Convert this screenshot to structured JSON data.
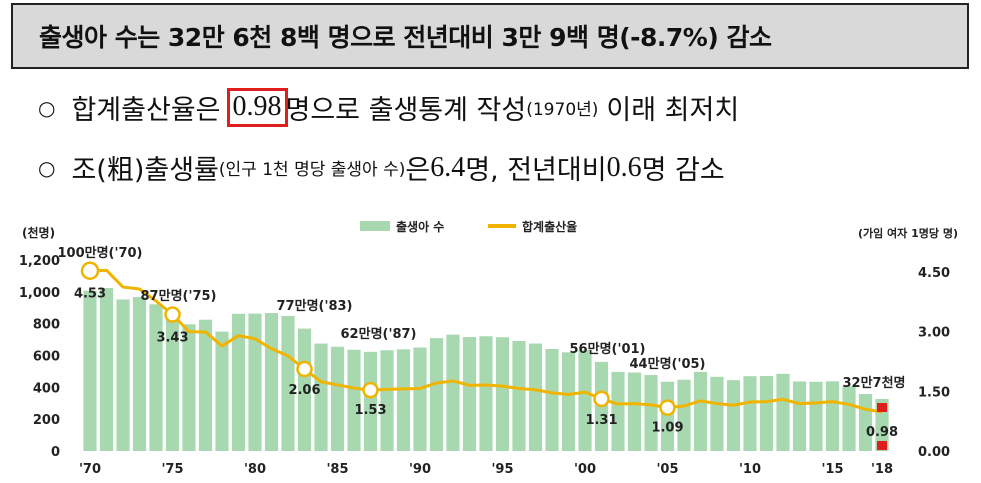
{
  "headline": "출생아 수는 32만 6천 8백 명으로 전년대비 3만 9백 명(-8.7%) 감소",
  "bullets": {
    "b1": {
      "bullet": "○",
      "before": "합계출산율은",
      "highlight": "0.98",
      "after": "명으로 출생통계 작성",
      "paren": "(1970년)",
      "tail": "이래 최저치"
    },
    "b2": {
      "bullet": "○",
      "before": "조(粗)출생률",
      "paren": "(인구 1천 명당 출생아 수)",
      "mid": "은 ",
      "num1": "6.4",
      "mid2": "명, 전년대비 ",
      "num2": "0.6",
      "tail": "명 감소"
    }
  },
  "colors": {
    "bar": "#a8d8b0",
    "line": "#f0b400",
    "highlight_box": "#e01e1e",
    "marker_2018": "#e01e1e"
  },
  "chart_data": {
    "type": "bar",
    "left_unit": "(천명)",
    "right_unit": "(가임 여자 1명당 명)",
    "legend": {
      "bar_label": "출생아 수",
      "line_label": "합계출산율"
    },
    "x": [
      1970,
      1971,
      1972,
      1973,
      1974,
      1975,
      1976,
      1977,
      1978,
      1979,
      1980,
      1981,
      1982,
      1983,
      1984,
      1985,
      1986,
      1987,
      1988,
      1989,
      1990,
      1991,
      1992,
      1993,
      1994,
      1995,
      1996,
      1997,
      1998,
      1999,
      2000,
      2001,
      2002,
      2003,
      2004,
      2005,
      2006,
      2007,
      2008,
      2009,
      2010,
      2011,
      2012,
      2013,
      2014,
      2015,
      2016,
      2017,
      2018
    ],
    "x_tick_labels": [
      "'70",
      "'75",
      "'80",
      "'85",
      "'90",
      "'95",
      "'00",
      "'05",
      "'10",
      "'15",
      "'18"
    ],
    "x_tick_years": [
      1970,
      1975,
      1980,
      1985,
      1990,
      1995,
      2000,
      2005,
      2010,
      2015,
      2018
    ],
    "births_thousand": [
      1007,
      1024,
      952,
      967,
      922,
      874,
      796,
      825,
      750,
      862,
      863,
      867,
      848,
      769,
      675,
      655,
      636,
      623,
      633,
      639,
      650,
      709,
      731,
      716,
      721,
      715,
      691,
      675,
      641,
      620,
      635,
      560,
      497,
      493,
      477,
      435,
      448,
      497,
      466,
      445,
      470,
      471,
      485,
      437,
      435,
      438,
      406,
      358,
      327
    ],
    "tfr": [
      4.53,
      4.54,
      4.12,
      4.07,
      3.77,
      3.43,
      3.0,
      2.99,
      2.64,
      2.9,
      2.82,
      2.57,
      2.39,
      2.06,
      1.74,
      1.66,
      1.58,
      1.53,
      1.55,
      1.56,
      1.57,
      1.71,
      1.76,
      1.65,
      1.66,
      1.63,
      1.57,
      1.54,
      1.46,
      1.42,
      1.48,
      1.31,
      1.18,
      1.19,
      1.16,
      1.09,
      1.13,
      1.26,
      1.19,
      1.15,
      1.23,
      1.24,
      1.3,
      1.19,
      1.21,
      1.24,
      1.17,
      1.05,
      0.98
    ],
    "left_axis": {
      "ylim": [
        0,
        1200
      ],
      "ticks": [
        0,
        200,
        400,
        600,
        800,
        1000,
        1200
      ],
      "tick_labels": [
        "0",
        "200",
        "400",
        "600",
        "800",
        "1,000",
        "1,200"
      ]
    },
    "right_axis": {
      "ylim": [
        0,
        4.8
      ],
      "ticks": [
        0,
        1.5,
        3.0,
        4.5
      ],
      "tick_labels": [
        "0.00",
        "1.50",
        "3.00",
        "4.50"
      ]
    },
    "bar_annotations": [
      {
        "year": 1970,
        "text": "100만명('70)"
      },
      {
        "year": 1975,
        "text": "87만명('75)"
      },
      {
        "year": 1983,
        "text": "77만명('83)"
      },
      {
        "year": 1987,
        "text": "62만명('87)"
      },
      {
        "year": 2001,
        "text": "56만명('01)"
      },
      {
        "year": 2005,
        "text": "44만명('05)"
      },
      {
        "year": 2018,
        "text": "32만7천명"
      }
    ],
    "line_labels": [
      {
        "year": 1970,
        "text": "4.53"
      },
      {
        "year": 1975,
        "text": "3.43"
      },
      {
        "year": 1983,
        "text": "2.06"
      },
      {
        "year": 1987,
        "text": "1.53"
      },
      {
        "year": 2001,
        "text": "1.31"
      },
      {
        "year": 2005,
        "text": "1.09"
      },
      {
        "year": 2018,
        "text": "0.98"
      }
    ]
  }
}
